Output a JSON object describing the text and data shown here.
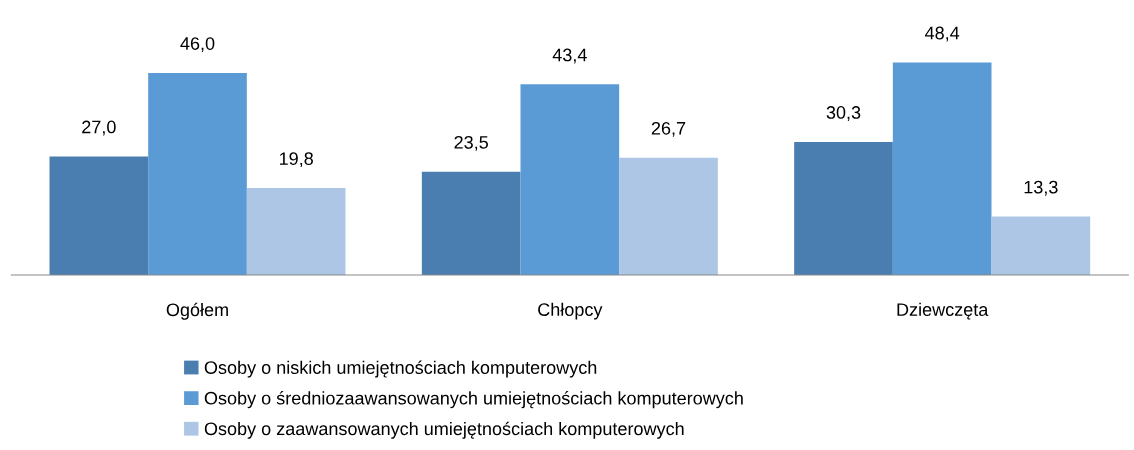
{
  "chart_data": {
    "type": "bar",
    "categories": [
      "Ogółem",
      "Chłopcy",
      "Dziewczęta"
    ],
    "series": [
      {
        "name": "Osoby o niskich umiejętnościach komputerowych",
        "color": "#4a7eb0",
        "values": [
          27.0,
          23.5,
          30.3
        ],
        "value_labels": [
          "27,0",
          "23,5",
          "30,3"
        ]
      },
      {
        "name": "Osoby o średniozaawansowanych umiejętnościach komputerowych",
        "color": "#5b9bd5",
        "values": [
          46.0,
          43.4,
          48.4
        ],
        "value_labels": [
          "46,0",
          "43,4",
          "48,4"
        ]
      },
      {
        "name": "Osoby o zaawansowanych umiejętnościach komputerowych",
        "color": "#adc6e5",
        "values": [
          19.8,
          26.7,
          13.3
        ],
        "value_labels": [
          "19,8",
          "26,7",
          "13,3"
        ]
      }
    ],
    "grid": false,
    "legend": "bottom",
    "tick_labels": "x"
  }
}
